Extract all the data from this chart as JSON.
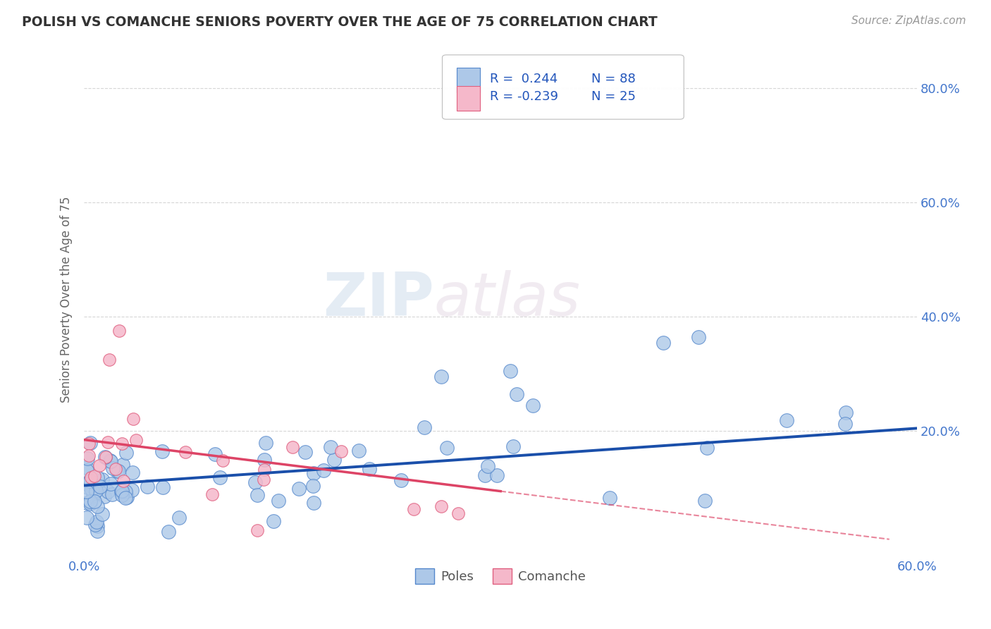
{
  "title": "POLISH VS COMANCHE SENIORS POVERTY OVER THE AGE OF 75 CORRELATION CHART",
  "source": "Source: ZipAtlas.com",
  "ylabel": "Seniors Poverty Over the Age of 75",
  "xlabel": "",
  "xlim": [
    0.0,
    0.6
  ],
  "ylim": [
    -0.02,
    0.88
  ],
  "xticks": [
    0.0,
    0.1,
    0.2,
    0.3,
    0.4,
    0.5,
    0.6
  ],
  "xticklabels": [
    "0.0%",
    "",
    "",
    "",
    "",
    "",
    "60.0%"
  ],
  "ytick_positions": [
    0.0,
    0.2,
    0.4,
    0.6,
    0.8
  ],
  "ytick_labels_right": [
    "",
    "20.0%",
    "40.0%",
    "60.0%",
    "80.0%"
  ],
  "poles_color": "#adc8e8",
  "poles_edge_color": "#5588cc",
  "comanche_color": "#f5b8ca",
  "comanche_edge_color": "#e06080",
  "trend_poles_color": "#1a4faa",
  "trend_comanche_color": "#dd4466",
  "legend_r_poles": "R =  0.244",
  "legend_n_poles": "N = 88",
  "legend_r_comanche": "R = -0.239",
  "legend_n_comanche": "N = 25",
  "poles_R": 0.244,
  "poles_N": 88,
  "comanche_R": -0.239,
  "comanche_N": 25,
  "watermark_zip": "ZIP",
  "watermark_atlas": "atlas",
  "background_color": "#ffffff",
  "grid_color": "#cccccc",
  "title_color": "#333333",
  "axis_label_color": "#666666",
  "tick_label_color": "#4477cc",
  "legend_text_color": "#2255bb",
  "poles_trend_start_y": 0.105,
  "poles_trend_end_y": 0.205,
  "comanche_trend_start_y": 0.185,
  "comanche_trend_end_y": 0.095,
  "comanche_trend_solid_end_x": 0.3,
  "comanche_trend_dashed_end_x": 0.58
}
